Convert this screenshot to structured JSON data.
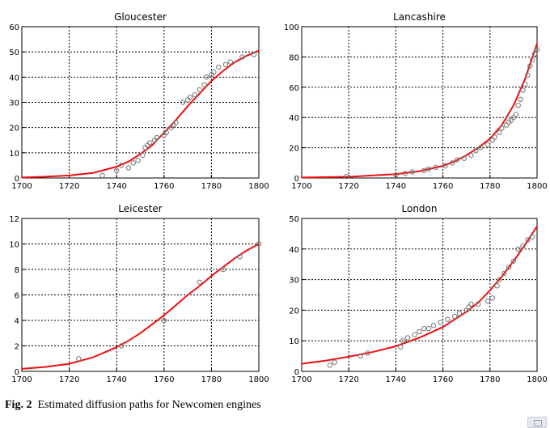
{
  "caption": {
    "label": "Fig. 2",
    "text": "Estimated diffusion paths for Newcomen engines"
  },
  "colors": {
    "fit_line": "#ee1111",
    "points": "#777777",
    "grid": "#000000"
  },
  "chart_data": [
    {
      "type": "scatter",
      "title": "Gloucester",
      "xlim": [
        1700,
        1800
      ],
      "ylim": [
        0,
        60
      ],
      "xticks": [
        1700,
        1720,
        1740,
        1760,
        1780,
        1800
      ],
      "yticks": [
        0,
        10,
        20,
        30,
        40,
        50,
        60
      ],
      "grid": true,
      "series": [
        {
          "kind": "points",
          "x": [
            1734,
            1740,
            1742,
            1745,
            1747,
            1749,
            1751,
            1752,
            1753,
            1754,
            1756,
            1757,
            1760,
            1761,
            1763,
            1764,
            1765,
            1768,
            1770,
            1771,
            1773,
            1775,
            1777,
            1778,
            1780,
            1781,
            1783,
            1786,
            1788,
            1793,
            1798
          ],
          "y": [
            1,
            3,
            5,
            4,
            6,
            7,
            9,
            12,
            13,
            14,
            15,
            16,
            17,
            18,
            20,
            21,
            22,
            30,
            31,
            32,
            33,
            35,
            37,
            40,
            41,
            42,
            44,
            45,
            46,
            48,
            49
          ]
        },
        {
          "kind": "line",
          "x": [
            1700,
            1710,
            1720,
            1730,
            1740,
            1745,
            1750,
            1755,
            1760,
            1765,
            1770,
            1775,
            1780,
            1785,
            1790,
            1795,
            1800
          ],
          "y": [
            0.2,
            0.5,
            1,
            2,
            4.5,
            6.5,
            9.5,
            13,
            18,
            23,
            28.5,
            33.5,
            38.5,
            42.5,
            46,
            48.5,
            50.5
          ]
        }
      ]
    },
    {
      "type": "scatter",
      "title": "Lancashire",
      "xlim": [
        1700,
        1800
      ],
      "ylim": [
        0,
        100
      ],
      "xticks": [
        1700,
        1720,
        1740,
        1760,
        1780,
        1800
      ],
      "yticks": [
        0,
        20,
        40,
        60,
        80,
        100
      ],
      "grid": true,
      "series": [
        {
          "kind": "points",
          "x": [
            1719,
            1740,
            1744,
            1747,
            1752,
            1754,
            1757,
            1761,
            1764,
            1766,
            1769,
            1772,
            1774,
            1776,
            1779,
            1781,
            1782,
            1784,
            1785,
            1787,
            1788,
            1789,
            1790,
            1791,
            1792,
            1793,
            1794,
            1795,
            1796,
            1797,
            1798,
            1799,
            1800
          ],
          "y": [
            1,
            2,
            3,
            4,
            5,
            6,
            7,
            8,
            10,
            12,
            13,
            15,
            18,
            20,
            22,
            25,
            27,
            30,
            33,
            35,
            37,
            38,
            40,
            42,
            48,
            52,
            58,
            62,
            68,
            74,
            78,
            82,
            85
          ]
        },
        {
          "kind": "line",
          "x": [
            1700,
            1720,
            1740,
            1750,
            1760,
            1765,
            1770,
            1775,
            1780,
            1785,
            1790,
            1795,
            1800
          ],
          "y": [
            0.3,
            0.8,
            2.5,
            4.5,
            8,
            11,
            15,
            20,
            26,
            35,
            48,
            66,
            89
          ]
        }
      ]
    },
    {
      "type": "scatter",
      "title": "Leicester",
      "xlim": [
        1700,
        1800
      ],
      "ylim": [
        0,
        12
      ],
      "xticks": [
        1700,
        1720,
        1740,
        1760,
        1780,
        1800
      ],
      "yticks": [
        0,
        2,
        4,
        6,
        8,
        10,
        12
      ],
      "grid": true,
      "series": [
        {
          "kind": "points",
          "x": [
            1724,
            1742,
            1760,
            1775,
            1785,
            1792,
            1800
          ],
          "y": [
            1,
            2,
            4,
            7,
            8,
            9,
            10
          ]
        },
        {
          "kind": "line",
          "x": [
            1700,
            1710,
            1720,
            1730,
            1740,
            1745,
            1750,
            1755,
            1760,
            1765,
            1770,
            1775,
            1780,
            1785,
            1790,
            1795,
            1800
          ],
          "y": [
            0.2,
            0.35,
            0.6,
            1.1,
            1.9,
            2.4,
            3,
            3.7,
            4.4,
            5.2,
            6,
            6.7,
            7.5,
            8.2,
            8.9,
            9.5,
            10
          ]
        }
      ]
    },
    {
      "type": "scatter",
      "title": "London",
      "xlim": [
        1700,
        1800
      ],
      "ylim": [
        0,
        50
      ],
      "xticks": [
        1700,
        1720,
        1740,
        1760,
        1780,
        1800
      ],
      "yticks": [
        0,
        10,
        20,
        30,
        40,
        50
      ],
      "grid": true,
      "series": [
        {
          "kind": "points",
          "x": [
            1712,
            1714,
            1725,
            1728,
            1742,
            1743,
            1745,
            1748,
            1750,
            1752,
            1754,
            1756,
            1759,
            1762,
            1765,
            1767,
            1770,
            1771,
            1772,
            1775,
            1779,
            1781,
            1783,
            1784,
            1786,
            1788,
            1790,
            1792,
            1794,
            1796,
            1798
          ],
          "y": [
            2,
            3,
            5,
            6,
            8,
            10,
            11,
            12,
            13,
            14,
            14,
            15,
            16,
            17,
            18,
            19,
            20,
            21,
            22,
            22,
            23,
            24,
            28,
            30,
            32,
            34,
            36,
            40,
            41,
            43,
            44
          ]
        },
        {
          "kind": "line",
          "x": [
            1700,
            1710,
            1720,
            1730,
            1740,
            1750,
            1760,
            1770,
            1775,
            1780,
            1785,
            1790,
            1795,
            1800
          ],
          "y": [
            2.5,
            3.5,
            4.8,
            6.3,
            8.2,
            11,
            14.5,
            19.5,
            22.5,
            26.5,
            31,
            36,
            41.5,
            47.5
          ]
        }
      ]
    }
  ]
}
